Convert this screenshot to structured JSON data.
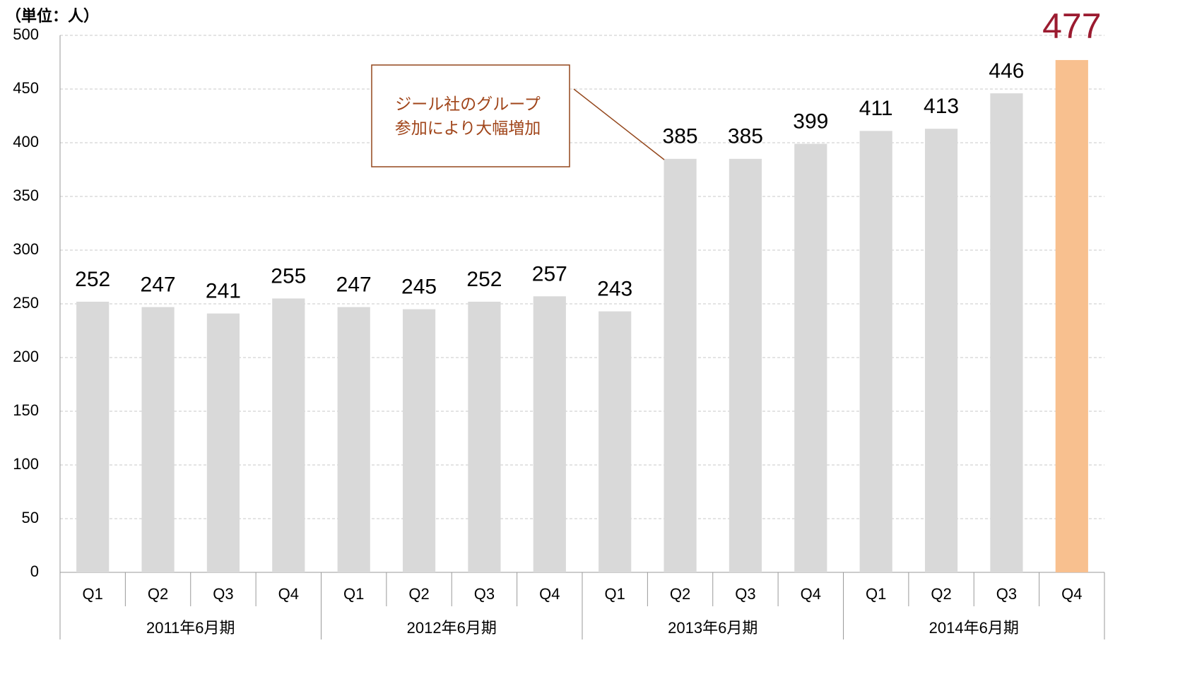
{
  "chart_data": {
    "type": "bar",
    "unit_label": "（単位：人）",
    "groups": [
      {
        "name": "2011年6月期",
        "categories": [
          "Q1",
          "Q2",
          "Q3",
          "Q4"
        ]
      },
      {
        "name": "2012年6月期",
        "categories": [
          "Q1",
          "Q2",
          "Q3",
          "Q4"
        ]
      },
      {
        "name": "2013年6月期",
        "categories": [
          "Q1",
          "Q2",
          "Q3",
          "Q4"
        ]
      },
      {
        "name": "2014年6月期",
        "categories": [
          "Q1",
          "Q2",
          "Q3",
          "Q4"
        ]
      }
    ],
    "values": [
      252,
      247,
      241,
      255,
      247,
      245,
      252,
      257,
      243,
      385,
      385,
      399,
      411,
      413,
      446,
      477
    ],
    "colors": [
      "#d9d9d9",
      "#d9d9d9",
      "#d9d9d9",
      "#d9d9d9",
      "#d9d9d9",
      "#d9d9d9",
      "#d9d9d9",
      "#d9d9d9",
      "#d9d9d9",
      "#d9d9d9",
      "#d9d9d9",
      "#d9d9d9",
      "#d9d9d9",
      "#d9d9d9",
      "#d9d9d9",
      "#f8c08f"
    ],
    "label_colors": [
      "#000000",
      "#000000",
      "#000000",
      "#000000",
      "#000000",
      "#000000",
      "#000000",
      "#000000",
      "#000000",
      "#000000",
      "#000000",
      "#000000",
      "#000000",
      "#000000",
      "#000000",
      "#9b1b30"
    ],
    "ylim": [
      0,
      500
    ],
    "yticks": [
      0,
      50,
      100,
      150,
      200,
      250,
      300,
      350,
      400,
      450,
      500
    ],
    "grid": true,
    "annotation": {
      "lines": [
        "ジール社のグループ",
        "参加により大幅増加"
      ]
    }
  }
}
